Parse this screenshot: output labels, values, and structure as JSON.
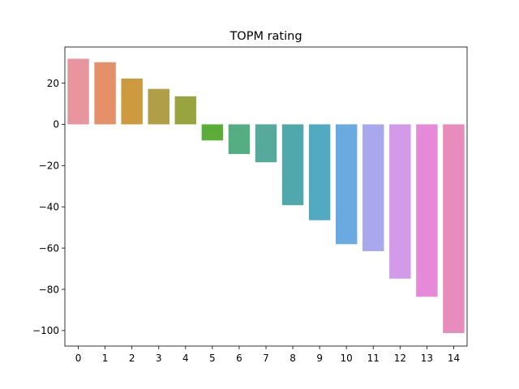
{
  "chart_data": {
    "type": "bar",
    "title": "TOPM rating",
    "xlabel": "",
    "ylabel": "",
    "categories": [
      "0",
      "1",
      "2",
      "3",
      "4",
      "5",
      "6",
      "7",
      "8",
      "9",
      "10",
      "11",
      "12",
      "13",
      "14"
    ],
    "values": [
      31.8,
      30.1,
      22.2,
      17.2,
      13.6,
      -7.8,
      -14.4,
      -18.4,
      -39.2,
      -46.5,
      -58.1,
      -61.5,
      -74.8,
      -83.6,
      -101.2
    ],
    "colors": [
      "#e8959e",
      "#e4916a",
      "#ce9a40",
      "#b19f48",
      "#98a440",
      "#5bad3a",
      "#55ae81",
      "#55aa9b",
      "#51a8ac",
      "#52a9c2",
      "#6ba9e1",
      "#a9a8ec",
      "#d29ae8",
      "#e689d9",
      "#e78cbb"
    ],
    "ylim": [
      -107.5,
      37.5
    ],
    "yticks": [
      20,
      0,
      -20,
      -40,
      -60,
      -80,
      -100
    ],
    "ytick_labels": [
      "20",
      "0",
      "−20",
      "−40",
      "−60",
      "−80",
      "−100"
    ],
    "grid": false
  }
}
